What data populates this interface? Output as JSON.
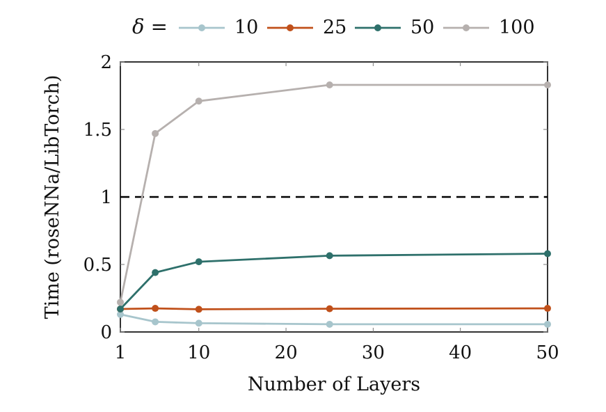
{
  "chart_data": {
    "type": "line",
    "title": "",
    "xlabel": "Number of Layers",
    "ylabel": "Time (roseNNa/LibTorch)",
    "xlim": [
      1,
      50
    ],
    "ylim": [
      0,
      2
    ],
    "xticks": [
      1,
      10,
      20,
      30,
      40,
      50
    ],
    "yticks": [
      0,
      0.5,
      1,
      1.5,
      2
    ],
    "xtick_labels": [
      "1",
      "10",
      "20",
      "30",
      "40",
      "50"
    ],
    "ytick_labels": [
      "0",
      "0.5",
      "1",
      "1.5",
      "2"
    ],
    "grid": false,
    "legend": {
      "placement": "top-center",
      "title": "δ =",
      "entries": [
        "10",
        "25",
        "50",
        "100"
      ]
    },
    "reference_line": {
      "y": 1,
      "style": "dashed",
      "color": "#000000"
    },
    "series": [
      {
        "name": "10",
        "color": "#a7c5cc",
        "x": [
          1,
          5,
          10,
          25,
          50
        ],
        "y": [
          0.13,
          0.075,
          0.065,
          0.057,
          0.057
        ]
      },
      {
        "name": "25",
        "color": "#c0501a",
        "x": [
          1,
          5,
          10,
          25,
          50
        ],
        "y": [
          0.17,
          0.175,
          0.168,
          0.172,
          0.175
        ]
      },
      {
        "name": "50",
        "color": "#2e706b",
        "x": [
          1,
          5,
          10,
          25,
          50
        ],
        "y": [
          0.17,
          0.44,
          0.52,
          0.565,
          0.58
        ]
      },
      {
        "name": "100",
        "color": "#b6b0ae",
        "x": [
          1,
          5,
          10,
          25,
          50
        ],
        "y": [
          0.22,
          1.47,
          1.71,
          1.83,
          1.83
        ]
      }
    ]
  }
}
